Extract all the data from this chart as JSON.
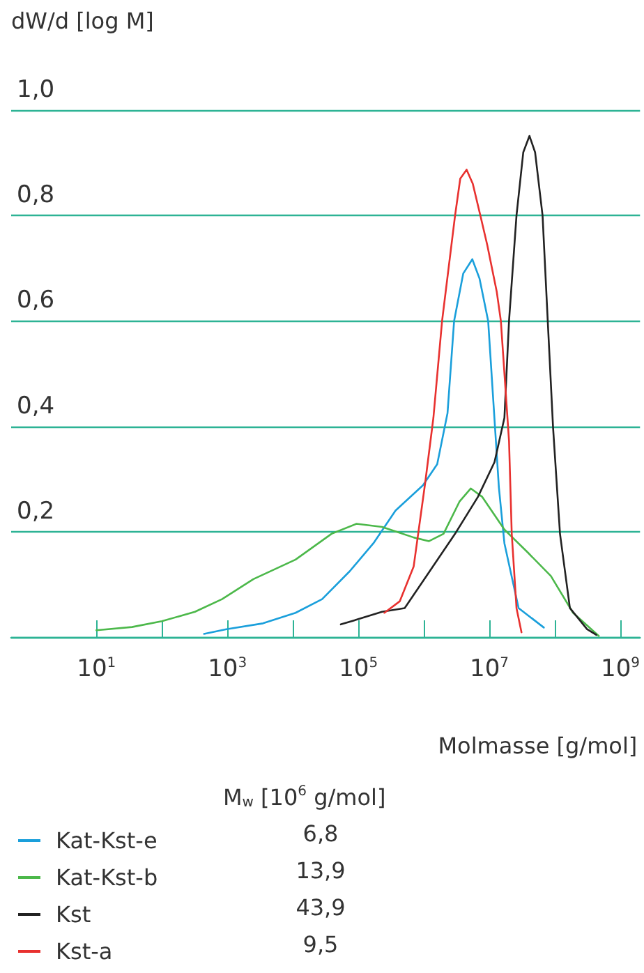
{
  "chart_data": {
    "type": "line",
    "ylabel": "dW/d [log M]",
    "xlabel": "Molmasse [g/mol]",
    "legend_title": "M$_{w}$ [10$^{6}$ g/mol]",
    "log": "x",
    "grid": "y",
    "legend": "bottom left",
    "marker": "none",
    "xlim": [
      0.5,
      2000000000.0
    ],
    "xticks": [
      {
        "value": 10,
        "label": "10$^{1}$"
      },
      {
        "value": 100,
        "label": null
      },
      {
        "value": 1000,
        "label": "10$^{3}$"
      },
      {
        "value": 10000,
        "label": null
      },
      {
        "value": 100000,
        "label": "10$^{5}$"
      },
      {
        "value": 1000000,
        "label": null
      },
      {
        "value": 10000000,
        "label": "10$^{7}$"
      },
      {
        "value": 100000000,
        "label": null
      },
      {
        "value": 1000000000,
        "label": "10$^{9}$"
      }
    ],
    "ylim": [
      0,
      1
    ],
    "yticks": [
      {
        "value": 0,
        "label": null
      },
      {
        "value": 0.2,
        "label": "0,2"
      },
      {
        "value": 0.4,
        "label": "0,4"
      },
      {
        "value": 0.6,
        "label": "0,6"
      },
      {
        "value": 0.8,
        "label": "0,8"
      },
      {
        "value": 1,
        "label": "1,0"
      }
    ],
    "series": [
      {
        "name": "Kat-Kst-e",
        "color": "#1a9fdb",
        "x": [
          440,
          970,
          3500,
          11000,
          28000,
          74000,
          170000,
          370000,
          970000,
          1600000,
          2300000,
          2900000,
          4000000,
          5500000,
          7100000,
          9600000,
          14000000,
          17000000,
          28000000,
          68000000
        ],
        "values": [
          0.006,
          0.015,
          0.026,
          0.046,
          0.072,
          0.125,
          0.178,
          0.24,
          0.288,
          0.328,
          0.425,
          0.6,
          0.69,
          0.717,
          0.68,
          0.6,
          0.284,
          0.178,
          0.055,
          0.018
        ]
      },
      {
        "name": "Kat-Kst-b",
        "color": "#4cb84a",
        "x": [
          10,
          35,
          100,
          320,
          830,
          2500,
          11000,
          39000,
          94000,
          230000,
          700000,
          1200000,
          2000000,
          3500000,
          5200000,
          7800000,
          17000000,
          39000000,
          87000000,
          190000000,
          470000000
        ],
        "values": [
          0.013,
          0.019,
          0.03,
          0.048,
          0.072,
          0.11,
          0.147,
          0.196,
          0.215,
          0.209,
          0.189,
          0.182,
          0.196,
          0.257,
          0.282,
          0.266,
          0.204,
          0.16,
          0.116,
          0.046,
          0.002
        ]
      },
      {
        "name": "Kst",
        "color": "#222222",
        "x": [
          54000,
          94000,
          230000,
          510000,
          1100000,
          3000000,
          6700000,
          12000000,
          17000000,
          20000000,
          26000000,
          33000000,
          41000000,
          50000000,
          65000000,
          78000000,
          94000000,
          120000000,
          170000000,
          310000000,
          430000000
        ],
        "values": [
          0.024,
          0.033,
          0.048,
          0.055,
          0.116,
          0.196,
          0.266,
          0.332,
          0.416,
          0.6,
          0.8,
          0.92,
          0.951,
          0.92,
          0.8,
          0.6,
          0.398,
          0.196,
          0.055,
          0.015,
          0.004
        ]
      },
      {
        "name": "Kst-a",
        "color": "#e8312f",
        "x": [
          250000,
          430000,
          700000,
          1050000,
          1400000,
          1900000,
          3000000,
          3600000,
          4500000,
          5600000,
          7300000,
          9300000,
          13000000,
          15000000,
          20000000,
          22000000,
          26000000,
          31000000
        ],
        "values": [
          0.046,
          0.068,
          0.134,
          0.293,
          0.416,
          0.6,
          0.8,
          0.87,
          0.887,
          0.86,
          0.8,
          0.744,
          0.655,
          0.6,
          0.372,
          0.196,
          0.055,
          0.009
        ]
      }
    ],
    "annotations": [
      "6,8",
      "13,9",
      "43,9",
      "9,5"
    ]
  }
}
